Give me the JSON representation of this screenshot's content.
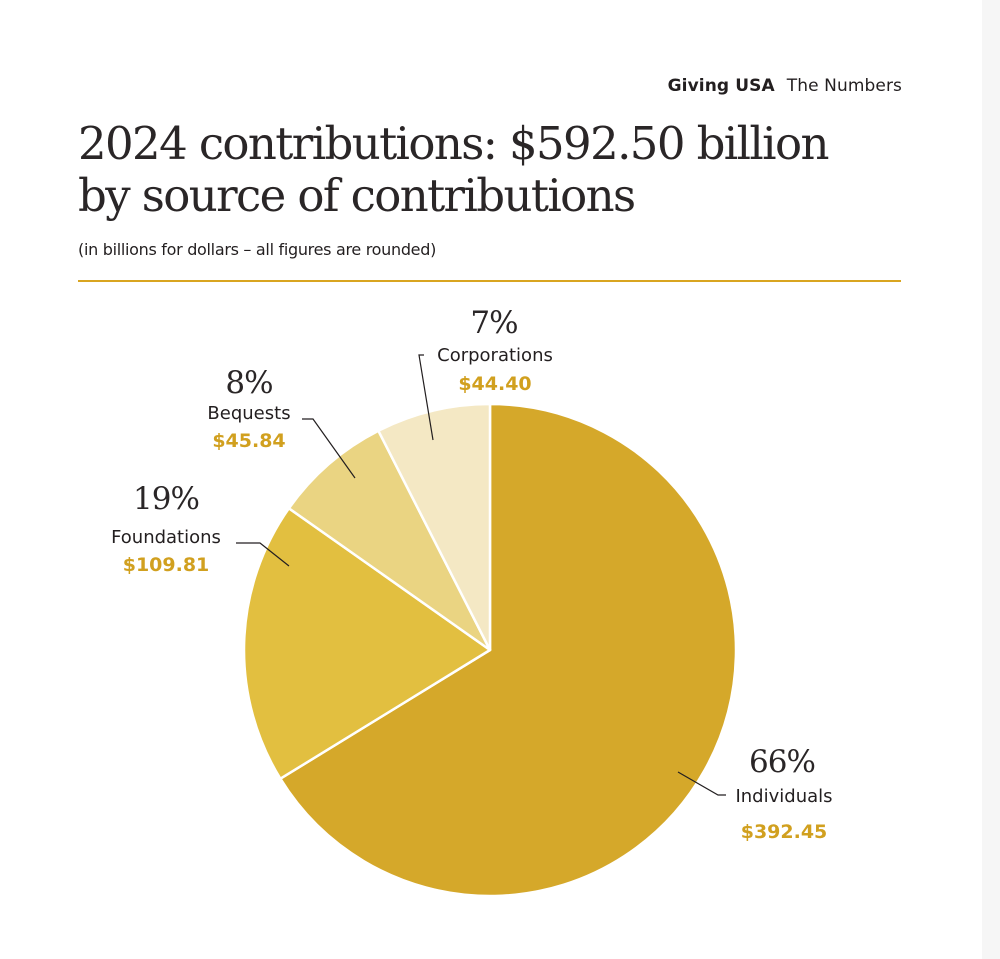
{
  "header": {
    "brand": "Giving USA",
    "section": "The Numbers"
  },
  "title_line1": "2024 contributions: $592.50 billion",
  "title_line2": "by source of contributions",
  "subtitle": "(in billions for dollars – all figures are rounded)",
  "colors": {
    "accent": "#d9a520",
    "value_text": "#d1a01f"
  },
  "chart_data": {
    "type": "pie",
    "title": "2024 contributions: $592.50 billion by source of contributions",
    "subtitle": "(in billions for dollars – all figures are rounded)",
    "total": 592.5,
    "unit": "billions of dollars",
    "start": "12 o'clock, clockwise",
    "slices": [
      {
        "label": "Individuals",
        "value": 392.45,
        "value_label": "$392.45",
        "percent_label": "66%",
        "color": "#d5a82a"
      },
      {
        "label": "Foundations",
        "value": 109.81,
        "value_label": "$109.81",
        "percent_label": "19%",
        "color": "#e2bf40"
      },
      {
        "label": "Bequests",
        "value": 45.84,
        "value_label": "$45.84",
        "percent_label": "8%",
        "color": "#ead482"
      },
      {
        "label": "Corporations",
        "value": 44.4,
        "value_label": "$44.40",
        "percent_label": "7%",
        "color": "#f4e8c4"
      }
    ]
  }
}
